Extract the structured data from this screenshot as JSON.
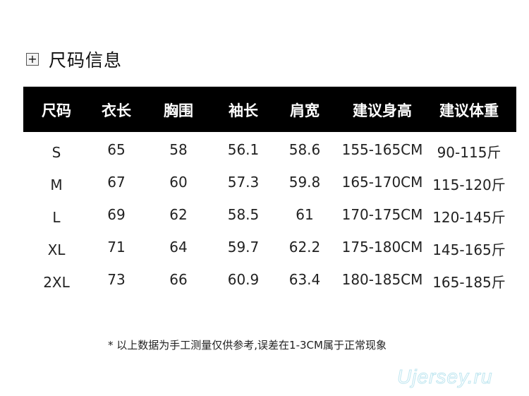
{
  "title": {
    "icon": "plus-square-icon",
    "text": "尺码信息"
  },
  "table": {
    "headers": [
      "尺码",
      "衣长",
      "胸围",
      "袖长",
      "肩宽",
      "建议身高",
      "建议体重"
    ],
    "rows": [
      [
        "S",
        "65",
        "58",
        "56.1",
        "58.6",
        "155-165CM",
        "90-115斤"
      ],
      [
        "M",
        "67",
        "60",
        "57.3",
        "59.8",
        "165-170CM",
        "115-120斤"
      ],
      [
        "L",
        "69",
        "62",
        "58.5",
        "61",
        "170-175CM",
        "120-145斤"
      ],
      [
        "XL",
        "71",
        "64",
        "59.7",
        "62.2",
        "175-180CM",
        "145-165斤"
      ],
      [
        "2XL",
        "73",
        "66",
        "60.9",
        "63.4",
        "180-185CM",
        "165-185斤"
      ]
    ]
  },
  "note": "* 以上数据为手工测量仅供参考,误差在1-3CM属于正常现象",
  "watermark": "Ujersey.ru"
}
